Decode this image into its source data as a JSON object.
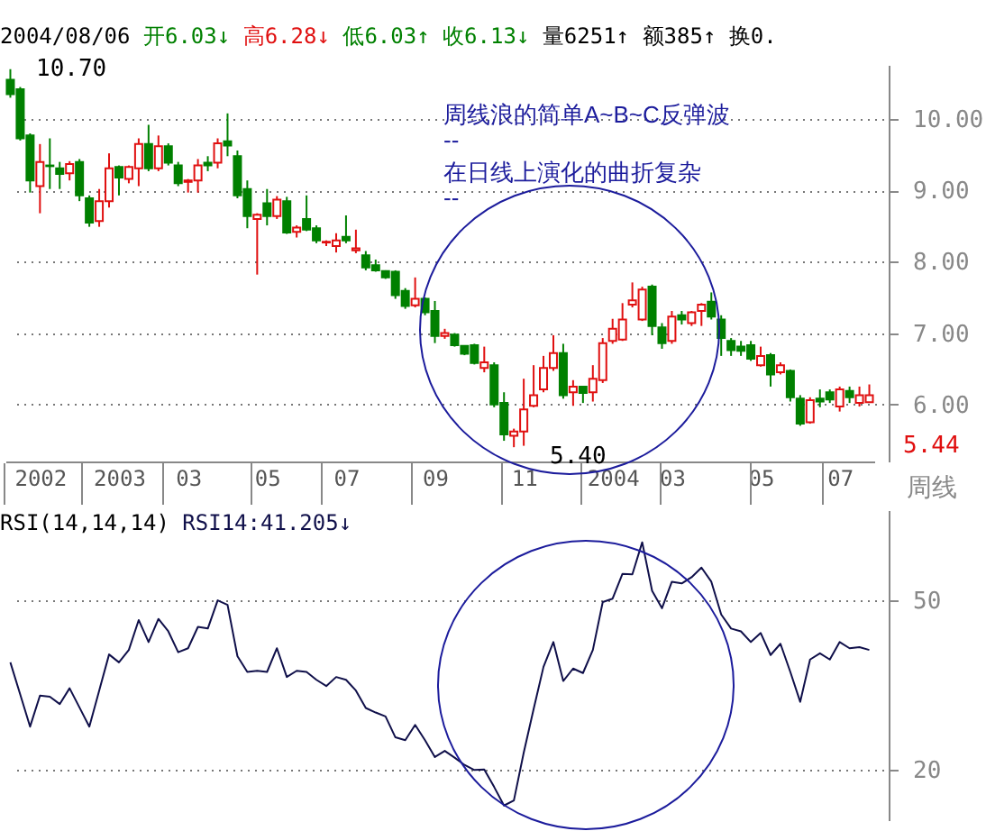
{
  "chart_data": [
    {
      "type": "candlestick",
      "subtitle": "2004/08/06 开6.03↓ 高6.28↓ 低6.03↑ 收6.13↓ 量6251↑ 额385↑ 换0.",
      "xlabel": "周线",
      "categories": [
        null,
        null,
        null,
        "2002",
        null,
        null,
        null,
        null,
        null,
        null,
        null,
        "2003",
        null,
        null,
        null,
        null,
        null,
        null,
        "03",
        null,
        null,
        null,
        null,
        null,
        null,
        null,
        "05",
        null,
        null,
        null,
        null,
        null,
        null,
        null,
        "07",
        null,
        null,
        null,
        null,
        null,
        null,
        null,
        null,
        "09",
        null,
        null,
        null,
        null,
        null,
        null,
        null,
        null,
        "11",
        null,
        null,
        null,
        null,
        null,
        null,
        null,
        null,
        "2004",
        null,
        null,
        null,
        null,
        null,
        "03",
        null,
        null,
        null,
        null,
        null,
        null,
        null,
        null,
        "05",
        null,
        null,
        null,
        null,
        null,
        null,
        null,
        "07",
        null,
        null,
        null
      ],
      "ohlc": [
        [
          10.55,
          10.7,
          10.3,
          10.35
        ],
        [
          10.42,
          10.45,
          9.7,
          9.73
        ],
        [
          9.77,
          9.8,
          8.97,
          9.14
        ],
        [
          9.06,
          9.65,
          8.68,
          9.4
        ],
        [
          9.35,
          9.73,
          9.02,
          9.34
        ],
        [
          9.31,
          9.4,
          9.02,
          9.23
        ],
        [
          9.24,
          9.41,
          9.14,
          9.37
        ],
        [
          9.4,
          9.44,
          8.85,
          8.93
        ],
        [
          8.89,
          8.93,
          8.49,
          8.55
        ],
        [
          8.57,
          9.02,
          8.49,
          8.85
        ],
        [
          8.85,
          9.52,
          8.76,
          9.31
        ],
        [
          9.33,
          9.35,
          8.93,
          9.18
        ],
        [
          9.16,
          9.35,
          9.1,
          9.33
        ],
        [
          9.31,
          9.73,
          9.06,
          9.65
        ],
        [
          9.65,
          9.92,
          9.27,
          9.31
        ],
        [
          9.31,
          9.77,
          9.27,
          9.62
        ],
        [
          9.62,
          9.66,
          9.35,
          9.39
        ],
        [
          9.35,
          9.4,
          9.06,
          9.1
        ],
        [
          9.12,
          9.16,
          8.97,
          9.14
        ],
        [
          9.14,
          9.44,
          8.97,
          9.35
        ],
        [
          9.39,
          9.48,
          9.27,
          9.35
        ],
        [
          9.39,
          9.73,
          9.31,
          9.66
        ],
        [
          9.69,
          10.08,
          9.48,
          9.63
        ],
        [
          9.48,
          9.56,
          8.89,
          8.93
        ],
        [
          9.02,
          9.14,
          8.47,
          8.64
        ],
        [
          8.6,
          8.68,
          7.82,
          8.66
        ],
        [
          8.82,
          9.02,
          8.51,
          8.64
        ],
        [
          8.64,
          8.92,
          8.6,
          8.87
        ],
        [
          8.85,
          8.91,
          8.39,
          8.41
        ],
        [
          8.42,
          8.51,
          8.34,
          8.48
        ],
        [
          8.6,
          8.93,
          8.43,
          8.45
        ],
        [
          8.47,
          8.51,
          8.26,
          8.3
        ],
        [
          8.27,
          8.3,
          8.22,
          8.28
        ],
        [
          8.22,
          8.4,
          8.13,
          8.3
        ],
        [
          8.35,
          8.65,
          8.26,
          8.3
        ],
        [
          8.16,
          8.45,
          8.12,
          8.19
        ],
        [
          8.09,
          8.15,
          7.88,
          7.92
        ],
        [
          7.95,
          8.03,
          7.86,
          7.88
        ],
        [
          7.87,
          7.88,
          7.76,
          7.78
        ],
        [
          7.86,
          7.88,
          7.48,
          7.53
        ],
        [
          7.59,
          7.63,
          7.34,
          7.38
        ],
        [
          7.39,
          7.78,
          7.36,
          7.48
        ],
        [
          7.48,
          7.5,
          7.25,
          7.29
        ],
        [
          7.31,
          7.45,
          6.86,
          6.96
        ],
        [
          6.96,
          7.06,
          6.92,
          7.0
        ],
        [
          6.98,
          7.0,
          6.81,
          6.83
        ],
        [
          6.82,
          6.83,
          6.69,
          6.71
        ],
        [
          6.83,
          6.85,
          6.56,
          6.58
        ],
        [
          6.51,
          6.81,
          6.45,
          6.59
        ],
        [
          6.55,
          6.59,
          5.96,
          6.0
        ],
        [
          6.02,
          6.17,
          5.49,
          5.58
        ],
        [
          5.56,
          5.66,
          5.4,
          5.62
        ],
        [
          5.62,
          6.36,
          5.42,
          5.93
        ],
        [
          5.98,
          6.55,
          5.96,
          6.13
        ],
        [
          6.21,
          6.68,
          6.17,
          6.51
        ],
        [
          6.51,
          6.97,
          6.47,
          6.72
        ],
        [
          6.72,
          6.85,
          6.08,
          6.13
        ],
        [
          6.17,
          6.34,
          5.98,
          6.25
        ],
        [
          6.25,
          6.25,
          6.02,
          6.16
        ],
        [
          6.17,
          6.55,
          6.04,
          6.36
        ],
        [
          6.34,
          6.93,
          6.3,
          6.86
        ],
        [
          6.89,
          7.2,
          6.85,
          7.06
        ],
        [
          6.91,
          7.42,
          6.89,
          7.19
        ],
        [
          7.4,
          7.71,
          7.36,
          7.46
        ],
        [
          7.19,
          7.65,
          7.17,
          7.61
        ],
        [
          7.65,
          7.68,
          6.97,
          7.1
        ],
        [
          7.08,
          7.14,
          6.78,
          6.86
        ],
        [
          6.89,
          7.31,
          6.85,
          7.23
        ],
        [
          7.25,
          7.31,
          7.12,
          7.19
        ],
        [
          7.14,
          7.31,
          7.1,
          7.29
        ],
        [
          7.31,
          7.42,
          7.1,
          7.4
        ],
        [
          7.44,
          7.57,
          7.19,
          7.23
        ],
        [
          7.19,
          7.25,
          6.68,
          6.93
        ],
        [
          6.89,
          6.93,
          6.68,
          6.76
        ],
        [
          6.81,
          6.89,
          6.68,
          6.75
        ],
        [
          6.83,
          6.89,
          6.61,
          6.64
        ],
        [
          6.55,
          6.81,
          6.53,
          6.68
        ],
        [
          6.69,
          6.72,
          6.25,
          6.42
        ],
        [
          6.45,
          6.59,
          6.42,
          6.55
        ],
        [
          6.47,
          6.49,
          6.04,
          6.1
        ],
        [
          6.08,
          6.13,
          5.7,
          5.73
        ],
        [
          5.75,
          6.1,
          5.73,
          6.06
        ],
        [
          6.08,
          6.21,
          5.96,
          6.04
        ],
        [
          6.17,
          6.21,
          6.02,
          6.07
        ],
        [
          5.97,
          6.25,
          5.9,
          6.21
        ],
        [
          6.19,
          6.25,
          6.02,
          6.1
        ],
        [
          6.02,
          6.25,
          5.97,
          6.13
        ],
        [
          6.03,
          6.28,
          6.03,
          6.13
        ]
      ],
      "colors": [
        "#008000",
        "#008000",
        "#008000",
        "#e01010",
        "#008000",
        "#008000",
        "#e01010",
        "#008000",
        "#008000",
        "#e01010",
        "#e01010",
        "#008000",
        "#e01010",
        "#e01010",
        "#008000",
        "#e01010",
        "#008000",
        "#008000",
        "#e01010",
        "#e01010",
        "#008000",
        "#e01010",
        "#008000",
        "#008000",
        "#008000",
        "#e01010",
        "#008000",
        "#e01010",
        "#008000",
        "#e01010",
        "#008000",
        "#008000",
        "#e01010",
        "#e01010",
        "#008000",
        "#e01010",
        "#008000",
        "#008000",
        "#008000",
        "#008000",
        "#008000",
        "#e01010",
        "#008000",
        "#008000",
        "#e01010",
        "#008000",
        "#008000",
        "#008000",
        "#e01010",
        "#008000",
        "#008000",
        "#e01010",
        "#e01010",
        "#e01010",
        "#e01010",
        "#e01010",
        "#008000",
        "#e01010",
        "#008000",
        "#e01010",
        "#e01010",
        "#e01010",
        "#e01010",
        "#e01010",
        "#e01010",
        "#008000",
        "#008000",
        "#e01010",
        "#008000",
        "#e01010",
        "#e01010",
        "#008000",
        "#008000",
        "#008000",
        "#008000",
        "#008000",
        "#e01010",
        "#008000",
        "#e01010",
        "#008000",
        "#008000",
        "#e01010",
        "#008000",
        "#008000",
        "#e01010",
        "#008000",
        "#e01010",
        "#e01010"
      ],
      "ylim": [
        5.2,
        10.76
      ],
      "yticks": [
        {
          "value": 6,
          "label": "6.00"
        },
        {
          "value": 7,
          "label": "7.00"
        },
        {
          "value": 8,
          "label": "8.00"
        },
        {
          "value": 9,
          "label": "9.00"
        },
        {
          "value": 10,
          "label": "10.00"
        }
      ],
      "grid": "y",
      "annotations": [
        "10.70",
        "5.40",
        "5.44",
        "周线浪的简单A~B~C反弹波",
        "--",
        "在日线上演化的曲折复杂",
        "--"
      ]
    },
    {
      "type": "line",
      "title": "RSI(14,14,14) RSI14:41.205↓",
      "categories": [
        null,
        null,
        null,
        "2002",
        null,
        null,
        null,
        null,
        null,
        null,
        null,
        "2003",
        null,
        null,
        null,
        null,
        null,
        null,
        "03",
        null,
        null,
        null,
        null,
        null,
        null,
        null,
        "05",
        null,
        null,
        null,
        null,
        null,
        null,
        null,
        "07",
        null,
        null,
        null,
        null,
        null,
        null,
        null,
        null,
        "09",
        null,
        null,
        null,
        null,
        null,
        null,
        null,
        null,
        "11",
        null,
        null,
        null,
        null,
        null,
        null,
        null,
        null,
        "2004",
        null,
        null,
        null,
        null,
        null,
        "03",
        null,
        null,
        null,
        null,
        null,
        null,
        null,
        null,
        "05",
        null,
        null,
        null,
        null,
        null,
        null,
        null,
        "07",
        null,
        null,
        null
      ],
      "series": [
        {
          "color": "#10104a",
          "values": [
            39.0,
            33.3,
            27.6,
            33.1,
            32.9,
            31.6,
            34.4,
            31.0,
            27.6,
            34.0,
            40.4,
            39.0,
            41.2,
            46.5,
            42.6,
            46.7,
            44.5,
            40.8,
            41.5,
            45.3,
            45.0,
            50.0,
            49.2,
            40.1,
            37.3,
            37.5,
            37.3,
            41.5,
            36.4,
            37.5,
            37.3,
            35.9,
            34.8,
            36.4,
            35.9,
            34.0,
            30.9,
            30.1,
            29.4,
            25.7,
            25.2,
            27.9,
            25.2,
            22.2,
            23.3,
            22.1,
            20.8,
            19.9,
            20.0,
            16.9,
            13.6,
            14.5,
            23.0,
            30.7,
            38.2,
            42.6,
            35.7,
            37.9,
            37.1,
            41.2,
            49.7,
            50.3,
            54.7,
            54.6,
            60.3,
            51.7,
            48.6,
            53.3,
            53.0,
            54.1,
            55.8,
            53.3,
            47.5,
            45.0,
            44.5,
            42.6,
            44.2,
            40.3,
            42.3,
            37.3,
            32.0,
            39.5,
            40.6,
            39.5,
            42.6,
            41.5,
            41.7,
            41.2
          ]
        }
      ],
      "ylim": [
        11,
        66
      ],
      "yticks": [
        20,
        50
      ],
      "grid": "y",
      "tick_labels": "y"
    }
  ]
}
